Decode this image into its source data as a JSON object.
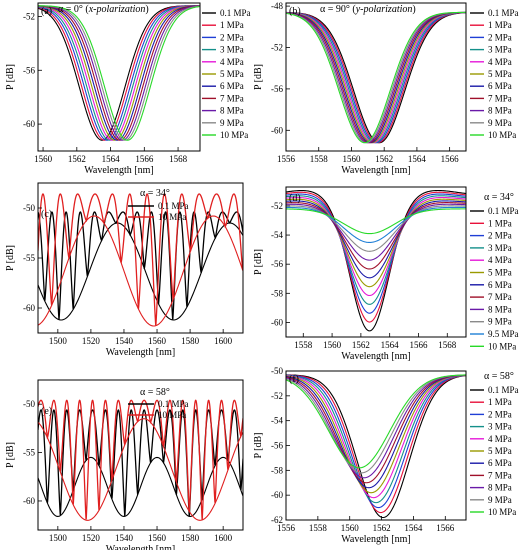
{
  "colors": {
    "0.1 MPa": "#000000",
    "1 MPa": "#e8113a",
    "2 MPa": "#1f3fd6",
    "3 MPa": "#14908a",
    "4 MPa": "#e619d8",
    "5 MPa": "#9a9a00",
    "6 MPa": "#1a1aa8",
    "7 MPa": "#a0102a",
    "8 MPa": "#6a1aa8",
    "9 MPa": "#8a8a8a",
    "9.5 MPa": "#1f7fd6",
    "10 MPa": "#28d928",
    "10 MPa (c/e)": "#e02020"
  },
  "chart_data": [
    {
      "id": "a",
      "type": "line",
      "panel_label": "(a)",
      "alpha_text": "α = 0° (",
      "pol_text": "x-polarization",
      "pol_close": ")",
      "xlabel": "Wavelength [nm]",
      "ylabel": "P [dB]",
      "xlim": [
        1559.7,
        1569.3
      ],
      "ylim": [
        -62,
        -51
      ],
      "xticks": [
        1560,
        1562,
        1564,
        1566,
        1568
      ],
      "yticks": [
        -52,
        -56,
        -60
      ],
      "legend": [
        "0.1 MPa",
        "1 MPa",
        "2 MPa",
        "3 MPa",
        "4 MPa",
        "5 MPa",
        "6 MPa",
        "7 MPa",
        "8 MPa",
        "9 MPa",
        "10 MPa"
      ],
      "dip_model": {
        "center_start": 1563.5,
        "center_end": 1565.0,
        "depth_db": -61.2,
        "top_db": -51.2,
        "width_nm": 2.0
      }
    },
    {
      "id": "b",
      "type": "line",
      "panel_label": "(b)",
      "alpha_text": "α = 90° (",
      "pol_text": "y-polarization",
      "pol_close": ")",
      "xlabel": "Wavelength [nm]",
      "ylabel": "P [dB]",
      "xlim": [
        1556,
        1567
      ],
      "ylim": [
        -62,
        -47.7
      ],
      "xticks": [
        1556,
        1558,
        1560,
        1562,
        1564,
        1566
      ],
      "yticks": [
        -48,
        -52,
        -56,
        -60
      ],
      "legend": [
        "0.1 MPa",
        "1 MPa",
        "2 MPa",
        "3 MPa",
        "4 MPa",
        "5 MPa",
        "6 MPa",
        "7 MPa",
        "8 MPa",
        "9 MPa",
        "10 MPa"
      ],
      "dip_model": {
        "center_start": 1561.7,
        "center_end": 1560.8,
        "depth_db": -61.2,
        "top_db": -48.6,
        "width_nm": 2.3
      }
    },
    {
      "id": "c",
      "type": "line",
      "panel_label": "(c)",
      "alpha_text": "α = 34°",
      "xlabel": "Wavelength [nm]",
      "ylabel": "P [dB]",
      "xlim": [
        1488,
        1612
      ],
      "ylim": [
        -62.5,
        -47.5
      ],
      "xticks": [
        1500,
        1520,
        1540,
        1560,
        1580,
        1600
      ],
      "yticks": [
        -50,
        -55,
        -60
      ],
      "legend": [
        "0.1 MPa",
        "10 MPa"
      ],
      "fringe_model": [
        {
          "name": "0.1 MPa",
          "fast_period_nm": 8.6,
          "env_period_nm": 68,
          "env_phase_nm": 1502,
          "upper_db": -50.4,
          "lower_min_db": -61.2,
          "lower_max_db": -51.5
        },
        {
          "name": "10 MPa",
          "fast_period_nm": 10.5,
          "env_period_nm": 72,
          "env_phase_nm": 1558,
          "upper_db": -48.6,
          "lower_min_db": -61.8,
          "lower_max_db": -50.8
        }
      ]
    },
    {
      "id": "d",
      "type": "line",
      "panel_label": "(d)",
      "alpha_text": "α = 34°",
      "xlabel": "Wavelength [nm]",
      "ylabel": "P [dB]",
      "xlim": [
        1556.8,
        1569.3
      ],
      "ylim": [
        -61,
        -50.7
      ],
      "xticks": [
        1558,
        1560,
        1562,
        1564,
        1566,
        1568
      ],
      "yticks": [
        -52,
        -54,
        -56,
        -58,
        -60
      ],
      "legend": [
        "0.1 MPa",
        "1 MPa",
        "2 MPa",
        "3 MPa",
        "4 MPa",
        "5 MPa",
        "6 MPa",
        "7 MPa",
        "8 MPa",
        "9 MPa",
        "9.5 MPa",
        "10 MPa"
      ],
      "dip_model": {
        "center": 1562.6,
        "depth_start_db": -60.6,
        "depth_end_db": -53.9,
        "top_db": -51.3
      }
    },
    {
      "id": "e",
      "type": "line",
      "panel_label": "(e)",
      "alpha_text": "α = 58°",
      "xlabel": "Wavelength [nm]",
      "ylabel": "P [dB]",
      "xlim": [
        1488,
        1612
      ],
      "ylim": [
        -63,
        -47.5
      ],
      "xticks": [
        1500,
        1520,
        1540,
        1560,
        1580,
        1600
      ],
      "yticks": [
        -50,
        -55,
        -60
      ],
      "legend": [
        "0.1 MPa",
        "10 MPa"
      ],
      "fringe_model": [
        {
          "name": "0.1 MPa",
          "fast_period_nm": 7.8,
          "env_period_nm": 40,
          "env_phase_nm": 1500,
          "upper_db": -50.6,
          "lower_min_db": -61.6,
          "lower_max_db": -55.5
        },
        {
          "name": "10 MPa",
          "fast_period_nm": 7.8,
          "env_period_nm": 68,
          "env_phase_nm": 1586,
          "upper_db": -49.6,
          "lower_min_db": -62.0,
          "lower_max_db": -51.5
        }
      ]
    },
    {
      "id": "f",
      "type": "line",
      "panel_label": "(f)",
      "alpha_text": "α = 58°",
      "xlabel": "Wavelength [nm]",
      "ylabel": "P [dB]",
      "xlim": [
        1556,
        1567.3
      ],
      "ylim": [
        -62,
        -50
      ],
      "xticks": [
        1556,
        1558,
        1560,
        1562,
        1564,
        1566
      ],
      "yticks": [
        -50,
        -52,
        -54,
        -56,
        -58,
        -60,
        -62
      ],
      "legend": [
        "0.1 MPa",
        "1 MPa",
        "2 MPa",
        "3 MPa",
        "4 MPa",
        "5 MPa",
        "6 MPa",
        "7 MPa",
        "8 MPa",
        "9 MPa",
        "10 MPa"
      ],
      "dip_model": {
        "center_start": 1562.1,
        "center_end": 1560.6,
        "depth_start_db": -61.8,
        "depth_end_db": -57.8,
        "top_db": -50.3
      }
    }
  ]
}
